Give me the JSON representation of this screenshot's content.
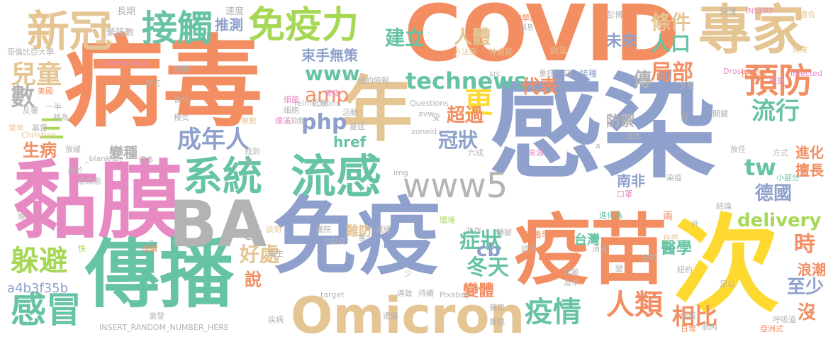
{
  "palette": {
    "orange": "#f28e62",
    "blue": "#8ea0cb",
    "green": "#66c3a4",
    "tan": "#e4c593",
    "yellow": "#fed930",
    "pink": "#e78ac4",
    "lime": "#a6d855",
    "gray": "#b3b3b3"
  },
  "words": [
    "COVID",
    "病毒",
    "感染",
    "年",
    "專家",
    "黏膜",
    "膜",
    "傳播",
    "免疫",
    "次",
    "疫苗",
    "Omicron",
    "BA",
    "系統",
    "流感",
    "接觸",
    "免疫力",
    "新冠",
    "兒童",
    "數",
    "三",
    "生病",
    "感冒",
    "躲避",
    "a4b3f35b",
    "好處",
    "ck",
    "www5",
    "www",
    "technews",
    "amp",
    "php",
    "更",
    "建立",
    "人體",
    "條件",
    "人口",
    "未來",
    "預防",
    "局部",
    "代表",
    "傳",
    "超過",
    "流行",
    "防禦",
    "成年人",
    "冠狀",
    "tw",
    "進化",
    "擅長",
    "南非",
    "德國",
    "delivery",
    "症狀",
    "cb",
    "冬天",
    "疫情",
    "人類",
    "相比",
    "時",
    "醫學",
    "浪潮",
    "至少",
    "沒",
    "推測",
    "束手無策",
    "變種",
    "變體",
    "難防",
    "台灣",
    "說",
    "href",
    "INSERT_RANDOM_NUMBER_HERE",
    "長期",
    "繁殖數",
    "速度",
    "哥倫比亞大學",
    "Coronavirus",
    "病學家",
    "消息",
    "神經質",
    "INSERT",
    "快速",
    "適合",
    "說法",
    "將來",
    "Drosten",
    "快篩陰",
    "Infected",
    "紐約時報",
    "reinfections",
    "Questions",
    "src",
    "zoneid",
    "img",
    "target",
    "Pixabay",
    "重症",
    "接種",
    "四",
    "彭博",
    "有益",
    "多重",
    "關鍵",
    "成本",
    "放任",
    "方式",
    "小部分",
    "結論",
    "口罩",
    "染疫",
    "病毒學家",
    "自然",
    "安慰",
    "亞洲式",
    "呼吸道",
    "肌肉",
    "日常",
    "新版",
    "共存",
    "轉變",
    "訪問",
    "醫院",
    "減緩",
    "環境",
    "事",
    "發展",
    "衛生",
    "談到",
    "注射到",
    "少",
    "疾病",
    "導致",
    "持續",
    "第四",
    "重視",
    "遭蔭",
    "激發",
    "比喻",
    "及早",
    "變",
    "紐約",
    "足以",
    "外",
    "兩",
    "消退",
    "進化為",
    "來源",
    "六成",
    "過多",
    "抑制",
    "細菌",
    "近幾",
    "活動",
    "無數",
    "爆滿",
    "蔓延",
    "細胞",
    "首個",
    "避開",
    "第三",
    "後代",
    "美國",
    "反覆",
    "一半",
    "常年",
    "視為",
    "基督",
    "Christian",
    "放緩",
    "善於",
    "_blank'air",
    "愈來愈",
    "找到",
    "avw",
    "模式",
    "月",
    "受",
    "方法",
    "原",
    "a",
    "n",
    "快",
    "燒",
    "找"
  ]
}
